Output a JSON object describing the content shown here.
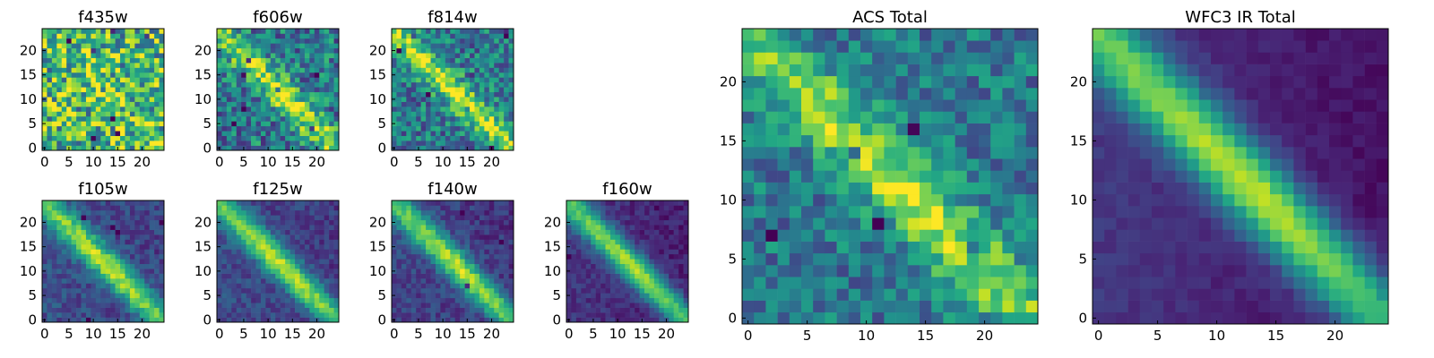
{
  "chart_data": [
    {
      "type": "heatmap",
      "title": "f435w",
      "xticks": [
        0,
        5,
        10,
        15,
        20
      ],
      "yticks": [
        0,
        5,
        10,
        15,
        20
      ],
      "xlim": [
        -0.5,
        24.5
      ],
      "ylim": [
        -0.5,
        24.5
      ],
      "colormap": "viridis",
      "pattern": {
        "signal": 0.1,
        "noise": 0.75,
        "background": 0.65,
        "gradient": 0.0,
        "seed": 11
      }
    },
    {
      "type": "heatmap",
      "title": "f606w",
      "xticks": [
        0,
        5,
        10,
        15,
        20
      ],
      "yticks": [
        0,
        5,
        10,
        15,
        20
      ],
      "xlim": [
        -0.5,
        24.5
      ],
      "ylim": [
        -0.5,
        24.5
      ],
      "colormap": "viridis",
      "pattern": {
        "signal": 0.55,
        "noise": 0.55,
        "background": 0.4,
        "gradient": 0.0,
        "seed": 23
      }
    },
    {
      "type": "heatmap",
      "title": "f814w",
      "xticks": [
        0,
        5,
        10,
        15,
        20
      ],
      "yticks": [
        0,
        5,
        10,
        15,
        20
      ],
      "xlim": [
        -0.5,
        24.5
      ],
      "ylim": [
        -0.5,
        24.5
      ],
      "colormap": "viridis",
      "pattern": {
        "signal": 0.55,
        "noise": 0.5,
        "background": 0.4,
        "gradient": 0.0,
        "seed": 37
      }
    },
    {
      "type": "heatmap",
      "title": "f105w",
      "xticks": [
        0,
        5,
        10,
        15,
        20
      ],
      "yticks": [
        0,
        5,
        10,
        15,
        20
      ],
      "xlim": [
        -0.5,
        24.5
      ],
      "ylim": [
        -0.5,
        24.5
      ],
      "colormap": "viridis",
      "pattern": {
        "signal": 0.7,
        "noise": 0.22,
        "background": 0.22,
        "gradient": 0.05,
        "seed": 41
      }
    },
    {
      "type": "heatmap",
      "title": "f125w",
      "xticks": [
        0,
        5,
        10,
        15,
        20
      ],
      "yticks": [
        0,
        5,
        10,
        15,
        20
      ],
      "xlim": [
        -0.5,
        24.5
      ],
      "ylim": [
        -0.5,
        24.5
      ],
      "colormap": "viridis",
      "pattern": {
        "signal": 0.72,
        "noise": 0.2,
        "background": 0.2,
        "gradient": 0.06,
        "seed": 53
      }
    },
    {
      "type": "heatmap",
      "title": "f140w",
      "xticks": [
        0,
        5,
        10,
        15,
        20
      ],
      "yticks": [
        0,
        5,
        10,
        15,
        20
      ],
      "xlim": [
        -0.5,
        24.5
      ],
      "ylim": [
        -0.5,
        24.5
      ],
      "colormap": "viridis",
      "pattern": {
        "signal": 0.74,
        "noise": 0.2,
        "background": 0.18,
        "gradient": 0.06,
        "seed": 67
      }
    },
    {
      "type": "heatmap",
      "title": "f160w",
      "xticks": [
        0,
        5,
        10,
        15,
        20
      ],
      "yticks": [
        0,
        5,
        10,
        15,
        20
      ],
      "xlim": [
        -0.5,
        24.5
      ],
      "ylim": [
        -0.5,
        24.5
      ],
      "colormap": "viridis",
      "pattern": {
        "signal": 0.78,
        "noise": 0.15,
        "background": 0.12,
        "gradient": 0.08,
        "seed": 79
      }
    },
    {
      "type": "heatmap",
      "title": "ACS Total",
      "xticks": [
        0,
        5,
        10,
        15,
        20
      ],
      "yticks": [
        0,
        5,
        10,
        15,
        20
      ],
      "xlim": [
        -0.5,
        24.5
      ],
      "ylim": [
        -0.5,
        24.5
      ],
      "colormap": "viridis",
      "pattern": {
        "signal": 0.5,
        "noise": 0.4,
        "background": 0.4,
        "gradient": 0.0,
        "seed": 83
      }
    },
    {
      "type": "heatmap",
      "title": "WFC3 IR Total",
      "xticks": [
        0,
        5,
        10,
        15,
        20
      ],
      "yticks": [
        0,
        5,
        10,
        15,
        20
      ],
      "xlim": [
        -0.5,
        24.5
      ],
      "ylim": [
        -0.5,
        24.5
      ],
      "colormap": "viridis",
      "pattern": {
        "signal": 0.82,
        "noise": 0.08,
        "background": 0.1,
        "gradient": 0.12,
        "seed": 97
      }
    }
  ]
}
